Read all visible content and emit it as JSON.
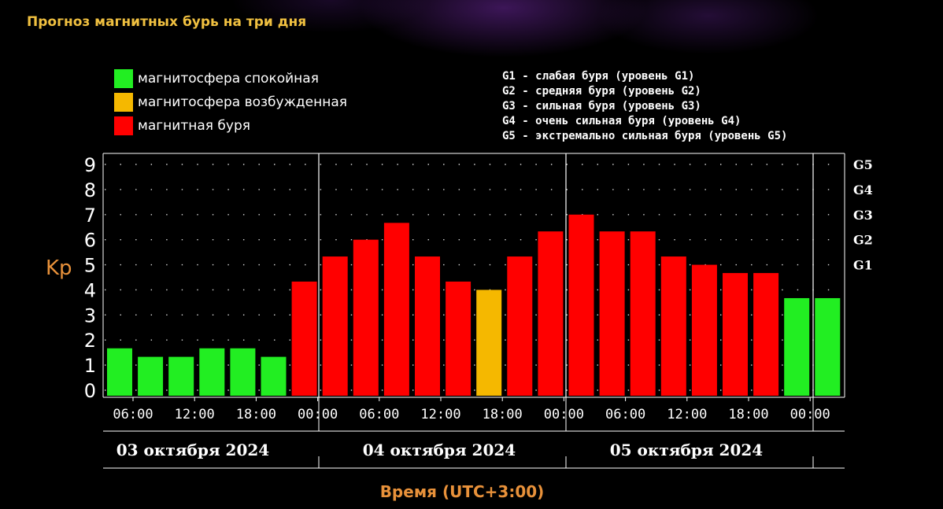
{
  "title": "Прогноз магнитных бурь на три дня",
  "legend": [
    {
      "label": "магнитосфера спокойная",
      "color": "#22ee22"
    },
    {
      "label": "магнитосфера возбужденная",
      "color": "#f5b800"
    },
    {
      "label": "магнитная буря",
      "color": "#ff0000"
    }
  ],
  "g_levels": [
    "G1 - слабая буря (уровень G1)",
    "G2 - средняя буря (уровень G2)",
    "G3 - сильная буря (уровень G3)",
    "G4 - очень сильная буря (уровень G4)",
    "G5 - экстремально сильная буря (уровень G5)"
  ],
  "chart_data": {
    "type": "bar",
    "title": "Прогноз магнитных бурь на три дня",
    "ylabel": "Kp",
    "xlabel": "Время (UTC+3:00)",
    "ylim": [
      0,
      9
    ],
    "yticks": [
      "0",
      "1",
      "2",
      "3",
      "4",
      "5",
      "6",
      "7",
      "8",
      "9"
    ],
    "right_ticks": [
      {
        "label": "G1",
        "value": 5
      },
      {
        "label": "G2",
        "value": 6
      },
      {
        "label": "G3",
        "value": 7
      },
      {
        "label": "G4",
        "value": 8
      },
      {
        "label": "G5",
        "value": 9
      }
    ],
    "x_tick_labels": [
      "06:00",
      "12:00",
      "18:00",
      "00:00",
      "06:00",
      "12:00",
      "18:00",
      "00:00",
      "06:00",
      "12:00",
      "18:00",
      "00:00"
    ],
    "days": [
      "03 октября 2024",
      "04 октября 2024",
      "05 октября 2024"
    ],
    "values": [
      1.67,
      1.33,
      1.33,
      1.67,
      1.67,
      1.33,
      4.33,
      5.33,
      6.0,
      6.67,
      5.33,
      4.33,
      4.0,
      5.33,
      6.33,
      7.0,
      6.33,
      6.33,
      5.33,
      5.0,
      4.67,
      4.67,
      3.67,
      3.67
    ],
    "colors": [
      "#22ee22",
      "#22ee22",
      "#22ee22",
      "#22ee22",
      "#22ee22",
      "#22ee22",
      "#ff0000",
      "#ff0000",
      "#ff0000",
      "#ff0000",
      "#ff0000",
      "#ff0000",
      "#f5b800",
      "#ff0000",
      "#ff0000",
      "#ff0000",
      "#ff0000",
      "#ff0000",
      "#ff0000",
      "#ff0000",
      "#ff0000",
      "#ff0000",
      "#22ee22",
      "#22ee22"
    ],
    "grid": true
  }
}
